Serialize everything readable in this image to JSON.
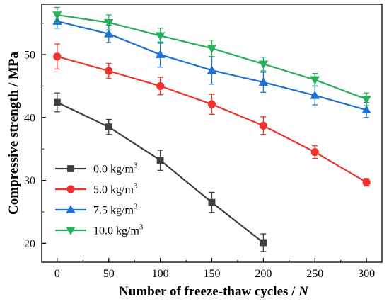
{
  "chart_data": {
    "type": "line",
    "xlabel": "Number of freeze-thaw cycles / ",
    "xlabel_italic": "N",
    "ylabel": "Compressive strength / MPa",
    "xlim": [
      -15,
      315
    ],
    "ylim": [
      17,
      58
    ],
    "x_ticks": [
      0,
      50,
      100,
      150,
      200,
      250,
      300
    ],
    "y_ticks": [
      20,
      30,
      40,
      50
    ],
    "legend_position": "bottom-left",
    "series": [
      {
        "name": "0.0 kg/m",
        "superscript": "3",
        "color": "#404040",
        "marker": "square",
        "x": [
          0,
          50,
          100,
          150,
          200
        ],
        "y": [
          42.4,
          38.5,
          33.2,
          26.5,
          20.1
        ],
        "err": [
          1.5,
          1.2,
          1.6,
          1.6,
          1.4
        ]
      },
      {
        "name": "5.0 kg/m",
        "superscript": "3",
        "color": "#f0322d",
        "marker": "circle",
        "x": [
          0,
          50,
          100,
          150,
          200,
          250,
          300
        ],
        "y": [
          49.7,
          47.4,
          45.0,
          42.1,
          38.7,
          34.5,
          29.7
        ],
        "err": [
          2.0,
          1.2,
          1.4,
          1.6,
          1.4,
          1.0,
          0.6
        ]
      },
      {
        "name": "7.5 kg/m",
        "superscript": "3",
        "color": "#1f6fd6",
        "marker": "triangle-up",
        "x": [
          0,
          50,
          100,
          150,
          200,
          250,
          300
        ],
        "y": [
          55.3,
          53.3,
          50.0,
          47.5,
          45.6,
          43.5,
          41.2
        ],
        "err": [
          1.1,
          1.4,
          2.0,
          2.2,
          1.6,
          1.5,
          1.2
        ]
      },
      {
        "name": "10.0 kg/m",
        "superscript": "3",
        "color": "#27b05a",
        "marker": "triangle-down",
        "x": [
          0,
          50,
          100,
          150,
          200,
          250,
          300
        ],
        "y": [
          56.3,
          55.1,
          53.0,
          51.0,
          48.5,
          46.0,
          42.9
        ],
        "err": [
          1.2,
          1.2,
          1.2,
          1.3,
          1.1,
          1.0,
          1.0
        ]
      }
    ]
  }
}
